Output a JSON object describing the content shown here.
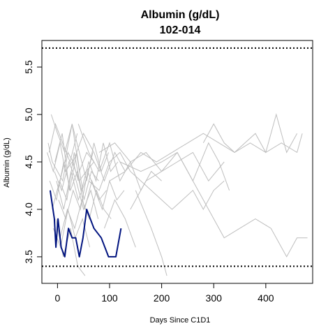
{
  "chart_data": {
    "type": "line",
    "title": "Albumin (g/dL)",
    "subtitle": "102-014",
    "xlabel": "Days Since C1D1",
    "ylabel": "Albumin (g/dL)",
    "xlim": [
      -30,
      490
    ],
    "ylim": [
      3.22,
      5.78
    ],
    "x_ticks": [
      0,
      100,
      200,
      300,
      400
    ],
    "y_ticks": [
      3.5,
      4.0,
      4.5,
      5.0,
      5.5
    ],
    "grid": false,
    "reference_lines": [
      {
        "y": 5.7,
        "style": "dotted"
      },
      {
        "y": 3.4,
        "style": "dotted"
      }
    ],
    "colors": {
      "highlight": "#00137F",
      "background_series": "#BEBEBE",
      "reference": "#000000"
    },
    "highlighted_series": {
      "x": [
        -14,
        -6,
        -3,
        1,
        7,
        14,
        21,
        28,
        35,
        42,
        49,
        56,
        63,
        70,
        84,
        98,
        112,
        122
      ],
      "y": [
        4.2,
        3.9,
        3.6,
        3.9,
        3.6,
        3.5,
        3.8,
        3.7,
        3.7,
        3.5,
        3.7,
        4.0,
        3.9,
        3.8,
        3.7,
        3.5,
        3.5,
        3.8
      ]
    },
    "background_series": [
      {
        "x": [
          -18,
          -10,
          0,
          10,
          20,
          30,
          40
        ],
        "y": [
          4.7,
          4.5,
          4.4,
          4.3,
          4.6,
          4.5,
          4.3
        ]
      },
      {
        "x": [
          -20,
          -8,
          5,
          15,
          28,
          42,
          55,
          70
        ],
        "y": [
          4.6,
          4.4,
          4.7,
          4.4,
          4.5,
          4.3,
          4.4,
          4.5
        ]
      },
      {
        "x": [
          -15,
          -2,
          12,
          25,
          38,
          52,
          66,
          80,
          94
        ],
        "y": [
          4.3,
          4.1,
          4.5,
          4.2,
          4.4,
          4.0,
          4.3,
          4.1,
          4.2
        ]
      },
      {
        "x": [
          -12,
          0,
          14,
          28,
          42,
          56,
          70
        ],
        "y": [
          5.0,
          4.8,
          4.6,
          4.9,
          4.4,
          4.6,
          4.5
        ]
      },
      {
        "x": [
          -10,
          4,
          18,
          32,
          46,
          60,
          74,
          88,
          102,
          116
        ],
        "y": [
          4.0,
          4.3,
          4.1,
          4.6,
          4.2,
          4.5,
          4.3,
          4.7,
          4.4,
          4.5
        ]
      },
      {
        "x": [
          -8,
          6,
          20,
          34,
          48,
          62
        ],
        "y": [
          3.8,
          3.6,
          4.0,
          3.7,
          3.9,
          3.6
        ]
      },
      {
        "x": [
          -5,
          9,
          23,
          37,
          51,
          65,
          79
        ],
        "y": [
          4.5,
          4.8,
          4.2,
          4.6,
          4.1,
          4.4,
          4.3
        ]
      },
      {
        "x": [
          -3,
          11,
          25,
          39,
          53
        ],
        "y": [
          3.9,
          3.5,
          3.8,
          3.4,
          3.3
        ]
      },
      {
        "x": [
          0,
          14,
          28,
          42,
          56,
          70,
          84,
          98
        ],
        "y": [
          4.2,
          4.5,
          4.9,
          4.6,
          4.3,
          4.7,
          4.4,
          4.6
        ]
      },
      {
        "x": [
          2,
          16,
          30,
          44,
          58,
          72,
          86,
          100,
          114,
          128
        ],
        "y": [
          4.1,
          3.9,
          4.2,
          4.0,
          4.4,
          4.2,
          4.0,
          4.3,
          4.1,
          4.2
        ]
      },
      {
        "x": [
          -6,
          8,
          22,
          36,
          50,
          64,
          78
        ],
        "y": [
          4.4,
          4.2,
          4.5,
          4.3,
          4.0,
          4.2,
          3.9
        ]
      },
      {
        "x": [
          -16,
          -4,
          10,
          24,
          38
        ],
        "y": [
          4.6,
          4.9,
          4.7,
          4.5,
          4.8
        ]
      },
      {
        "x": [
          5,
          19,
          33,
          47,
          61,
          75,
          89,
          103
        ],
        "y": [
          3.7,
          4.0,
          3.8,
          4.1,
          3.9,
          4.2,
          4.0,
          3.9
        ]
      },
      {
        "x": [
          -2,
          12,
          26,
          40,
          54,
          68
        ],
        "y": [
          4.3,
          4.0,
          4.4,
          4.1,
          4.3,
          4.6
        ]
      },
      {
        "x": [
          40,
          60,
          80,
          100,
          120,
          140,
          160,
          180,
          200
        ],
        "y": [
          4.9,
          4.6,
          4.4,
          4.7,
          4.3,
          4.5,
          4.2,
          4.4,
          4.3
        ]
      },
      {
        "x": [
          60,
          80,
          100,
          120,
          140,
          160,
          180,
          200,
          220,
          240,
          260,
          280,
          300,
          320
        ],
        "y": [
          4.3,
          4.2,
          4.5,
          4.6,
          4.4,
          4.3,
          4.2,
          4.1,
          4.0,
          4.1,
          4.2,
          4.0,
          4.2,
          4.3
        ]
      },
      {
        "x": [
          80,
          110,
          140,
          170,
          200,
          230,
          260,
          290,
          320
        ],
        "y": [
          4.6,
          4.7,
          4.5,
          4.6,
          4.4,
          4.5,
          4.6,
          4.3,
          4.5
        ]
      },
      {
        "x": [
          100,
          130,
          160,
          190,
          220,
          250,
          280,
          310,
          340,
          370,
          400,
          430,
          460,
          470
        ],
        "y": [
          4.3,
          4.4,
          4.6,
          4.5,
          4.6,
          4.7,
          4.8,
          4.7,
          4.6,
          4.7,
          4.6,
          4.7,
          4.6,
          4.8
        ]
      },
      {
        "x": [
          120,
          160,
          200,
          230,
          260,
          290,
          320,
          350,
          380,
          410,
          440,
          460,
          480
        ],
        "y": [
          4.5,
          4.4,
          4.5,
          4.6,
          4.3,
          4.0,
          3.7,
          3.8,
          3.9,
          3.8,
          3.5,
          3.7,
          3.7
        ]
      },
      {
        "x": [
          140,
          170,
          200,
          230,
          260,
          290,
          310,
          330
        ],
        "y": [
          4.0,
          4.3,
          4.4,
          4.6,
          4.3,
          4.7,
          4.5,
          4.2
        ]
      },
      {
        "x": [
          150,
          180,
          200,
          210
        ],
        "y": [
          4.2,
          3.8,
          3.5,
          3.3
        ]
      },
      {
        "x": [
          280,
          300,
          320,
          340,
          360,
          380,
          400,
          420,
          440,
          460
        ],
        "y": [
          4.7,
          4.9,
          4.7,
          4.6,
          4.7,
          4.8,
          4.6,
          5.0,
          4.6,
          4.8
        ]
      },
      {
        "x": [
          90,
          110,
          130,
          150
        ],
        "y": [
          3.8,
          4.1,
          3.9,
          3.6
        ]
      },
      {
        "x": [
          30,
          50,
          70,
          90,
          110,
          130
        ],
        "y": [
          4.5,
          4.8,
          4.6,
          4.3,
          4.6,
          4.4
        ]
      }
    ]
  }
}
